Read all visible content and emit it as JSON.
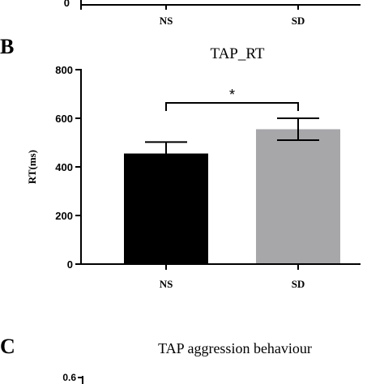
{
  "top_partial": {
    "y_tick": "0",
    "categories": [
      "NS",
      "SD"
    ]
  },
  "panel_b": {
    "panel_letter": "B",
    "chart_data": {
      "type": "bar",
      "title": "TAP_RT",
      "ylabel": "RT(ms)",
      "xlabel": "",
      "categories": [
        "NS",
        "SD"
      ],
      "values": [
        455,
        555
      ],
      "errors": [
        47,
        45
      ],
      "ylim": [
        0,
        800
      ],
      "yticks": [
        0,
        200,
        400,
        600,
        800
      ],
      "bar_colors": [
        "#000000",
        "#a7a7aa"
      ],
      "significance": {
        "from": 0,
        "to": 1,
        "label": "*"
      },
      "grid": false
    }
  },
  "panel_c": {
    "panel_letter": "C",
    "title": "TAP aggression behaviour",
    "y_tick_partial": "0.6"
  }
}
